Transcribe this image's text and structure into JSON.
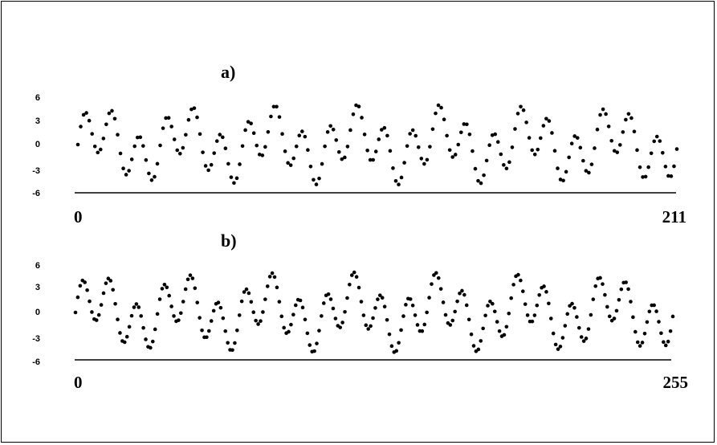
{
  "chart_data": [
    {
      "type": "scatter",
      "panel_label": "a)",
      "series_formula": "sum of sines",
      "x": {
        "min": 0,
        "max": 211,
        "tick_labels": [
          "0",
          "211"
        ]
      },
      "ylim": [
        -6,
        6
      ],
      "yticks": [
        "6",
        "3",
        "0",
        "-3",
        "-6"
      ],
      "n_points": 212,
      "components": [
        {
          "amplitude": 3,
          "period": 9.6
        },
        {
          "amplitude": 2,
          "period": 30.2
        }
      ]
    },
    {
      "type": "scatter",
      "panel_label": "b)",
      "series_formula": "sum of sines",
      "x": {
        "min": 0,
        "max": 255,
        "tick_labels": [
          "0",
          "255"
        ]
      },
      "ylim": [
        -6,
        6
      ],
      "yticks": [
        "6",
        "3",
        "0",
        "-3",
        "-6"
      ],
      "n_points": 256,
      "components": [
        {
          "amplitude": 3,
          "period": 11.6
        },
        {
          "amplitude": 2,
          "period": 36.5
        }
      ]
    }
  ],
  "colors": {
    "points": "#000000",
    "axis": "#000000",
    "background": "#ffffff"
  }
}
